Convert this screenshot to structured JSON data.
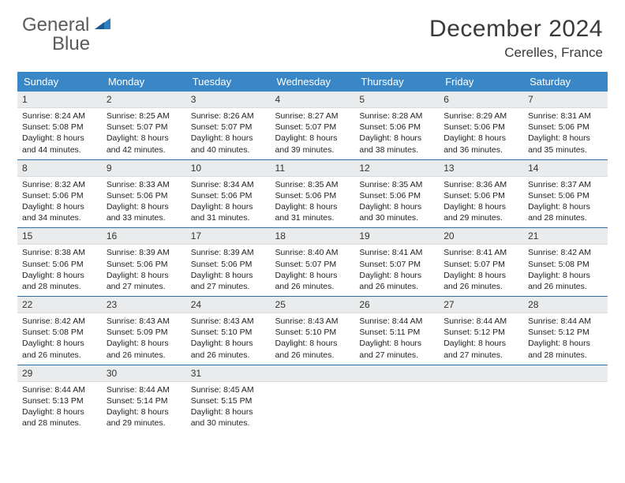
{
  "brand": {
    "word1": "General",
    "word2": "Blue"
  },
  "title": "December 2024",
  "location": "Cerelles, France",
  "colors": {
    "header_bg": "#3a87c7",
    "row_divider": "#2f6fa8",
    "daynum_bg": "#e9ebec",
    "text": "#333333",
    "brand_gray": "#5a5a5a",
    "brand_blue": "#2f7fbf"
  },
  "day_labels": [
    "Sunday",
    "Monday",
    "Tuesday",
    "Wednesday",
    "Thursday",
    "Friday",
    "Saturday"
  ],
  "weeks": [
    [
      {
        "n": "1",
        "sr": "8:24 AM",
        "ss": "5:08 PM",
        "dl": "8 hours and 44 minutes."
      },
      {
        "n": "2",
        "sr": "8:25 AM",
        "ss": "5:07 PM",
        "dl": "8 hours and 42 minutes."
      },
      {
        "n": "3",
        "sr": "8:26 AM",
        "ss": "5:07 PM",
        "dl": "8 hours and 40 minutes."
      },
      {
        "n": "4",
        "sr": "8:27 AM",
        "ss": "5:07 PM",
        "dl": "8 hours and 39 minutes."
      },
      {
        "n": "5",
        "sr": "8:28 AM",
        "ss": "5:06 PM",
        "dl": "8 hours and 38 minutes."
      },
      {
        "n": "6",
        "sr": "8:29 AM",
        "ss": "5:06 PM",
        "dl": "8 hours and 36 minutes."
      },
      {
        "n": "7",
        "sr": "8:31 AM",
        "ss": "5:06 PM",
        "dl": "8 hours and 35 minutes."
      }
    ],
    [
      {
        "n": "8",
        "sr": "8:32 AM",
        "ss": "5:06 PM",
        "dl": "8 hours and 34 minutes."
      },
      {
        "n": "9",
        "sr": "8:33 AM",
        "ss": "5:06 PM",
        "dl": "8 hours and 33 minutes."
      },
      {
        "n": "10",
        "sr": "8:34 AM",
        "ss": "5:06 PM",
        "dl": "8 hours and 31 minutes."
      },
      {
        "n": "11",
        "sr": "8:35 AM",
        "ss": "5:06 PM",
        "dl": "8 hours and 31 minutes."
      },
      {
        "n": "12",
        "sr": "8:35 AM",
        "ss": "5:06 PM",
        "dl": "8 hours and 30 minutes."
      },
      {
        "n": "13",
        "sr": "8:36 AM",
        "ss": "5:06 PM",
        "dl": "8 hours and 29 minutes."
      },
      {
        "n": "14",
        "sr": "8:37 AM",
        "ss": "5:06 PM",
        "dl": "8 hours and 28 minutes."
      }
    ],
    [
      {
        "n": "15",
        "sr": "8:38 AM",
        "ss": "5:06 PM",
        "dl": "8 hours and 28 minutes."
      },
      {
        "n": "16",
        "sr": "8:39 AM",
        "ss": "5:06 PM",
        "dl": "8 hours and 27 minutes."
      },
      {
        "n": "17",
        "sr": "8:39 AM",
        "ss": "5:06 PM",
        "dl": "8 hours and 27 minutes."
      },
      {
        "n": "18",
        "sr": "8:40 AM",
        "ss": "5:07 PM",
        "dl": "8 hours and 26 minutes."
      },
      {
        "n": "19",
        "sr": "8:41 AM",
        "ss": "5:07 PM",
        "dl": "8 hours and 26 minutes."
      },
      {
        "n": "20",
        "sr": "8:41 AM",
        "ss": "5:07 PM",
        "dl": "8 hours and 26 minutes."
      },
      {
        "n": "21",
        "sr": "8:42 AM",
        "ss": "5:08 PM",
        "dl": "8 hours and 26 minutes."
      }
    ],
    [
      {
        "n": "22",
        "sr": "8:42 AM",
        "ss": "5:08 PM",
        "dl": "8 hours and 26 minutes."
      },
      {
        "n": "23",
        "sr": "8:43 AM",
        "ss": "5:09 PM",
        "dl": "8 hours and 26 minutes."
      },
      {
        "n": "24",
        "sr": "8:43 AM",
        "ss": "5:10 PM",
        "dl": "8 hours and 26 minutes."
      },
      {
        "n": "25",
        "sr": "8:43 AM",
        "ss": "5:10 PM",
        "dl": "8 hours and 26 minutes."
      },
      {
        "n": "26",
        "sr": "8:44 AM",
        "ss": "5:11 PM",
        "dl": "8 hours and 27 minutes."
      },
      {
        "n": "27",
        "sr": "8:44 AM",
        "ss": "5:12 PM",
        "dl": "8 hours and 27 minutes."
      },
      {
        "n": "28",
        "sr": "8:44 AM",
        "ss": "5:12 PM",
        "dl": "8 hours and 28 minutes."
      }
    ],
    [
      {
        "n": "29",
        "sr": "8:44 AM",
        "ss": "5:13 PM",
        "dl": "8 hours and 28 minutes."
      },
      {
        "n": "30",
        "sr": "8:44 AM",
        "ss": "5:14 PM",
        "dl": "8 hours and 29 minutes."
      },
      {
        "n": "31",
        "sr": "8:45 AM",
        "ss": "5:15 PM",
        "dl": "8 hours and 30 minutes."
      },
      null,
      null,
      null,
      null
    ]
  ],
  "labels": {
    "sunrise": "Sunrise: ",
    "sunset": "Sunset: ",
    "daylight": "Daylight: "
  }
}
